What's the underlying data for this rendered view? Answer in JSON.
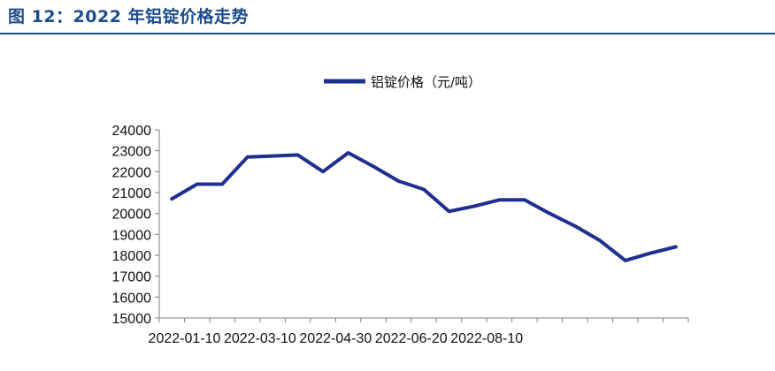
{
  "figure": {
    "title": "图 12：2022 年铝锭价格走势",
    "title_color": "#1c4c8c"
  },
  "chart_data": {
    "type": "line",
    "title": "",
    "xlabel": "",
    "ylabel": "",
    "ylim": [
      15000,
      24000
    ],
    "yticks": [
      15000,
      16000,
      17000,
      18000,
      19000,
      20000,
      21000,
      22000,
      23000,
      24000
    ],
    "xtick_labels": [
      "2022-01-10",
      "2022-03-10",
      "2022-04-30",
      "2022-06-20",
      "2022-08-10"
    ],
    "xtick_positions": [
      0.5,
      3.5,
      6.5,
      9.5,
      12.5
    ],
    "grid": false,
    "legend_position": "top-center",
    "series": [
      {
        "name": "铝锭价格（元/吨）",
        "color": "#1f2f8f",
        "values": [
          20700,
          21400,
          21400,
          22700,
          22750,
          22800,
          22000,
          22900,
          22250,
          21550,
          21150,
          20100,
          20350,
          20650,
          20650,
          20000,
          19400,
          18700,
          17750,
          18100,
          18400
        ]
      }
    ]
  }
}
